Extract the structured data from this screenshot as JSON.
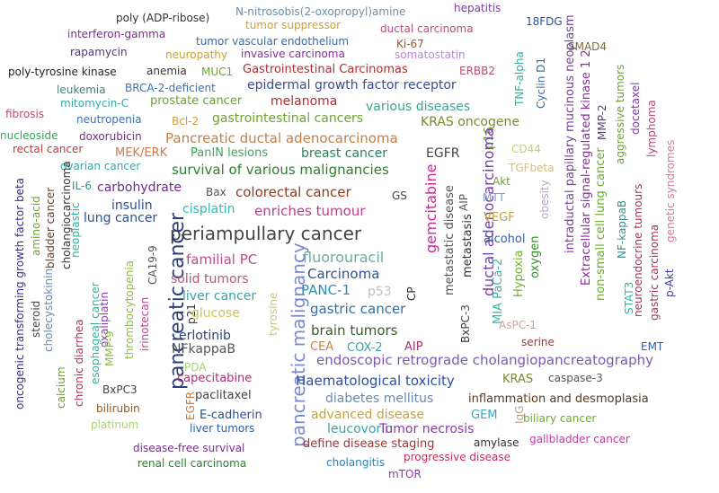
{
  "words": [
    {
      "text": "poly (ADP-ribose)",
      "color": "#333333",
      "size": 12
    },
    {
      "text": "N-nitrosobis(2-oxopropyl)amine",
      "color": "#6f8fa8",
      "size": 12
    },
    {
      "text": "hepatitis",
      "color": "#7b3f9e",
      "size": 12
    },
    {
      "text": "18FDG",
      "color": "#2c4f9f",
      "size": 12
    },
    {
      "text": "tumor suppressor",
      "color": "#c8a13a",
      "size": 12
    },
    {
      "text": "ductal carcinoma",
      "color": "#c04a7a",
      "size": 12
    },
    {
      "text": "interferon-gamma",
      "color": "#7b2d8e",
      "size": 12
    },
    {
      "text": "tumor vascular endothelium",
      "color": "#3a6aa5",
      "size": 12
    },
    {
      "text": "Ki-67",
      "color": "#8c5a3c",
      "size": 12
    },
    {
      "text": "SMAD4",
      "color": "#7a6a3a",
      "size": 12
    },
    {
      "text": "rapamycin",
      "color": "#5a2d82",
      "size": 12
    },
    {
      "text": "neuropathy",
      "color": "#c8a13a",
      "size": 12
    },
    {
      "text": "invasive carcinoma",
      "color": "#8e2ba0",
      "size": 12
    },
    {
      "text": "somatostatin",
      "color": "#b48ad0",
      "size": 12
    },
    {
      "text": "poly-tyrosine kinase",
      "color": "#222222",
      "size": 12
    },
    {
      "text": "anemia",
      "color": "#333333",
      "size": 12
    },
    {
      "text": "MUC1",
      "color": "#6aa52e",
      "size": 12
    },
    {
      "text": "Gastrointestinal Carcinomas",
      "color": "#a83232",
      "size": 13
    },
    {
      "text": "ERBB2",
      "color": "#b0506f",
      "size": 12
    },
    {
      "text": "TNF-alpha",
      "color": "#2ab5a0",
      "size": 12
    },
    {
      "text": "Cyclin D1",
      "color": "#3a6ea8",
      "size": 12
    },
    {
      "text": "leukemia",
      "color": "#3f7f7f",
      "size": 12
    },
    {
      "text": "BRCA-2-deficient",
      "color": "#3a72b0",
      "size": 12
    },
    {
      "text": "epidermal growth factor receptor",
      "color": "#3a4e8c",
      "size": 14
    },
    {
      "text": "intraductal papillary mucinous neoplasm",
      "color": "#7a3f9e",
      "size": 13
    },
    {
      "text": "Extracellular signal-regulated kinase 1 2",
      "color": "#8e2ba0",
      "size": 13
    },
    {
      "text": "MMP-2",
      "color": "#5a3f7a",
      "size": 12
    },
    {
      "text": "aggressive tumors",
      "color": "#6aa52e",
      "size": 12
    },
    {
      "text": "docetaxel",
      "color": "#7a3f9e",
      "size": 12
    },
    {
      "text": "lymphoma",
      "color": "#b04a7a",
      "size": 12
    },
    {
      "text": "mitomycin-C",
      "color": "#3aa5a5",
      "size": 12
    },
    {
      "text": "prostate cancer",
      "color": "#6aa52e",
      "size": 13
    },
    {
      "text": "melanoma",
      "color": "#a83232",
      "size": 14
    },
    {
      "text": "various diseases",
      "color": "#3aa58e",
      "size": 14
    },
    {
      "text": "fibrosis",
      "color": "#c04a6a",
      "size": 12
    },
    {
      "text": "neutropenia",
      "color": "#3a72b0",
      "size": 12
    },
    {
      "text": "Bcl-2",
      "color": "#c8a13a",
      "size": 12
    },
    {
      "text": "gastrointestinal cancers",
      "color": "#6aa52e",
      "size": 14
    },
    {
      "text": "KRAS oncogene",
      "color": "#7a8a2e",
      "size": 14
    },
    {
      "text": "nucleoside",
      "color": "#3aa55a",
      "size": 12
    },
    {
      "text": "doxorubicin",
      "color": "#7a2d8e",
      "size": 12
    },
    {
      "text": "Pancreatic ductal adenocarcinoma",
      "color": "#c0804a",
      "size": 15
    },
    {
      "text": "EGFR",
      "color": "#444444",
      "size": 14
    },
    {
      "text": "p16",
      "color": "#6aa52e",
      "size": 13
    },
    {
      "text": "CD44",
      "color": "#c8d06a",
      "size": 12
    },
    {
      "text": "rectal cancer",
      "color": "#c03a3a",
      "size": 12
    },
    {
      "text": "MEK/ERK",
      "color": "#d07a4a",
      "size": 13
    },
    {
      "text": "PanIN lesions",
      "color": "#3aa55a",
      "size": 13
    },
    {
      "text": "breast cancer",
      "color": "#2e7f5a",
      "size": 14
    },
    {
      "text": "ovarian cancer",
      "color": "#3aa5a5",
      "size": 12
    },
    {
      "text": "survival of various malignancies",
      "color": "#2e7f2e",
      "size": 15
    },
    {
      "text": "TGFbeta",
      "color": "#d0c08a",
      "size": 12
    },
    {
      "text": "non-small cell lung cancer",
      "color": "#6ab02e",
      "size": 13
    },
    {
      "text": "NF-kappaB",
      "color": "#3a8e8e",
      "size": 12
    },
    {
      "text": "neuroendocrine tumours",
      "color": "#a83260",
      "size": 12
    },
    {
      "text": "gastric carcinoma",
      "color": "#a8325a",
      "size": 12
    },
    {
      "text": "genetic syndromes",
      "color": "#d07aa0",
      "size": 12
    },
    {
      "text": "IL-6",
      "color": "#3a8e8e",
      "size": 12
    },
    {
      "text": "carbohydrate",
      "color": "#6a2d8e",
      "size": 14
    },
    {
      "text": "Bax",
      "color": "#555555",
      "size": 12
    },
    {
      "text": "colorectal cancer",
      "color": "#8e3a1e",
      "size": 15
    },
    {
      "text": "GS",
      "color": "#444444",
      "size": 12
    },
    {
      "text": "gemcitabine",
      "color": "#c02d8e",
      "size": 16
    },
    {
      "text": "metastatic disease",
      "color": "#555555",
      "size": 13
    },
    {
      "text": "metastasis",
      "color": "#333333",
      "size": 13
    },
    {
      "text": "AIP",
      "color": "#555555",
      "size": 12
    },
    {
      "text": "ductal adenocarcinoma",
      "color": "#7a3fae",
      "size": 16
    },
    {
      "text": "Akt",
      "color": "#6aa52e",
      "size": 12
    },
    {
      "text": "MTT",
      "color": "#6fa0d0",
      "size": 12
    },
    {
      "text": "obesity",
      "color": "#c0a0d0",
      "size": 12
    },
    {
      "text": "STAT3",
      "color": "#2ab5a0",
      "size": 12
    },
    {
      "text": "p-Akt",
      "color": "#3a3aae",
      "size": 12
    },
    {
      "text": "oncogenic transforming growth factor beta",
      "color": "#3a2d8e",
      "size": 12
    },
    {
      "text": "amino-acid",
      "color": "#6aa52e",
      "size": 12
    },
    {
      "text": "bladder cancer",
      "color": "#6a3a2e",
      "size": 12
    },
    {
      "text": "cholangiocarcinoma",
      "color": "#333333",
      "size": 12
    },
    {
      "text": "neoplastic",
      "color": "#2ab5a0",
      "size": 12
    },
    {
      "text": "insulin",
      "color": "#2e4f8e",
      "size": 14
    },
    {
      "text": "lung cancer",
      "color": "#2e4f8e",
      "size": 14
    },
    {
      "text": "cisplatin",
      "color": "#3ab5b5",
      "size": 14
    },
    {
      "text": "enriches tumour",
      "color": "#c03a8e",
      "size": 15
    },
    {
      "text": "VEGF",
      "color": "#c8a13a",
      "size": 13
    },
    {
      "text": "alcohol",
      "color": "#2e5fa8",
      "size": 13
    },
    {
      "text": "oxygen",
      "color": "#3a8e2e",
      "size": 13
    },
    {
      "text": "Hypoxia",
      "color": "#6ab02e",
      "size": 13
    },
    {
      "text": "MIA PaCa-2",
      "color": "#3ab59e",
      "size": 13
    },
    {
      "text": "periampullary cancer",
      "color": "#444444",
      "size": 20
    },
    {
      "text": "cholecystokinin",
      "color": "#6a8ab0",
      "size": 12
    },
    {
      "text": "oxaliplatin",
      "color": "#8e3aae",
      "size": 12
    },
    {
      "text": "thrombocytopenia",
      "color": "#8ec03a",
      "size": 12
    },
    {
      "text": "CA19-9",
      "color": "#555555",
      "size": 12
    },
    {
      "text": "pancreatic cancer",
      "color": "#2e3f7a",
      "size": 22
    },
    {
      "text": "familial PC",
      "color": "#c04a8e",
      "size": 15
    },
    {
      "text": "fluorouracil",
      "color": "#6ab0a0",
      "size": 16
    },
    {
      "text": "pancreatic malignancy",
      "color": "#7a8ad0",
      "size": 20
    },
    {
      "text": "Carcinoma",
      "color": "#2e4f8e",
      "size": 15
    },
    {
      "text": "solid tumors",
      "color": "#b05a7a",
      "size": 14
    },
    {
      "text": "PANC-1",
      "color": "#2e8eae",
      "size": 15
    },
    {
      "text": "p53",
      "color": "#c0c0c0",
      "size": 14
    },
    {
      "text": "CP",
      "color": "#333333",
      "size": 12
    },
    {
      "text": "liver cancer",
      "color": "#3aa5a5",
      "size": 14
    },
    {
      "text": "gastric cancer",
      "color": "#2e6fa8",
      "size": 15
    },
    {
      "text": "BxPC-3",
      "color": "#444444",
      "size": 12
    },
    {
      "text": "AsPC-1",
      "color": "#d0a0a0",
      "size": 12
    },
    {
      "text": "steroid",
      "color": "#444444",
      "size": 12
    },
    {
      "text": "calcium",
      "color": "#6aa52e",
      "size": 12
    },
    {
      "text": "chronic diarrhea",
      "color": "#b0325a",
      "size": 12
    },
    {
      "text": "esophageal cancer",
      "color": "#2ab5a0",
      "size": 12
    },
    {
      "text": "MMP-9",
      "color": "#8ec03a",
      "size": 12
    },
    {
      "text": "irinotecan",
      "color": "#b04a8e",
      "size": 12
    },
    {
      "text": "p21",
      "color": "#333333",
      "size": 12
    },
    {
      "text": "glucose",
      "color": "#d0c060",
      "size": 14
    },
    {
      "text": "erlotinib",
      "color": "#2e3f7a",
      "size": 14
    },
    {
      "text": "tyrosine",
      "color": "#d0c080",
      "size": 12
    },
    {
      "text": "brain tumors",
      "color": "#3a5a2e",
      "size": 15
    },
    {
      "text": "NFkappaB",
      "color": "#555555",
      "size": 14
    },
    {
      "text": "CEA",
      "color": "#d0804a",
      "size": 13
    },
    {
      "text": "COX-2",
      "color": "#3aa5a5",
      "size": 13
    },
    {
      "text": "AIP",
      "color": "#a83270",
      "size": 13
    },
    {
      "text": "serine",
      "color": "#8e3a3a",
      "size": 12
    },
    {
      "text": "EMT",
      "color": "#2e5fa8",
      "size": 12
    },
    {
      "text": "endoscopic retrograde cholangiopancreatography",
      "color": "#7a5ab0",
      "size": 15
    },
    {
      "text": "PDA",
      "color": "#a8d07a",
      "size": 12
    },
    {
      "text": "capecitabine",
      "color": "#a83270",
      "size": 13
    },
    {
      "text": "Haematological toxicity",
      "color": "#2e4f9f",
      "size": 15
    },
    {
      "text": "KRAS",
      "color": "#7a8a2e",
      "size": 13
    },
    {
      "text": "caspase-3",
      "color": "#555555",
      "size": 12
    },
    {
      "text": "BxPC3",
      "color": "#444444",
      "size": 12
    },
    {
      "text": "paclitaxel",
      "color": "#444444",
      "size": 13
    },
    {
      "text": "EGFR",
      "color": "#d07a3a",
      "size": 12
    },
    {
      "text": "diabetes mellitus",
      "color": "#6a8ab0",
      "size": 14
    },
    {
      "text": "inflammation and desmoplasia",
      "color": "#5a3a1e",
      "size": 13
    },
    {
      "text": "bilirubin",
      "color": "#8e5a2e",
      "size": 12
    },
    {
      "text": "E-cadherin",
      "color": "#2e4f8e",
      "size": 13
    },
    {
      "text": "advanced disease",
      "color": "#c8a13a",
      "size": 14
    },
    {
      "text": "GEM",
      "color": "#3aa5c0",
      "size": 13
    },
    {
      "text": "IgG",
      "color": "#c0a080",
      "size": 12
    },
    {
      "text": "biliary cancer",
      "color": "#6ab02e",
      "size": 12
    },
    {
      "text": "platinum",
      "color": "#a8d07a",
      "size": 12
    },
    {
      "text": "liver tumors",
      "color": "#2e5fa8",
      "size": 12
    },
    {
      "text": "leucovorin",
      "color": "#3aa5a5",
      "size": 14
    },
    {
      "text": "Tumor necrosis",
      "color": "#8e3aae",
      "size": 14
    },
    {
      "text": "disease-free survival",
      "color": "#7a2d8e",
      "size": 12
    },
    {
      "text": "define disease staging",
      "color": "#a83232",
      "size": 13
    },
    {
      "text": "amylase",
      "color": "#333333",
      "size": 12
    },
    {
      "text": "gallbladder cancer",
      "color": "#c03aa0",
      "size": 12
    },
    {
      "text": "renal cell carcinoma",
      "color": "#2e7f2e",
      "size": 12
    },
    {
      "text": "cholangitis",
      "color": "#2e7fae",
      "size": 12
    },
    {
      "text": "progressive disease",
      "color": "#c0325a",
      "size": 12
    },
    {
      "text": "mTOR",
      "color": "#8e3aae",
      "size": 12
    }
  ]
}
